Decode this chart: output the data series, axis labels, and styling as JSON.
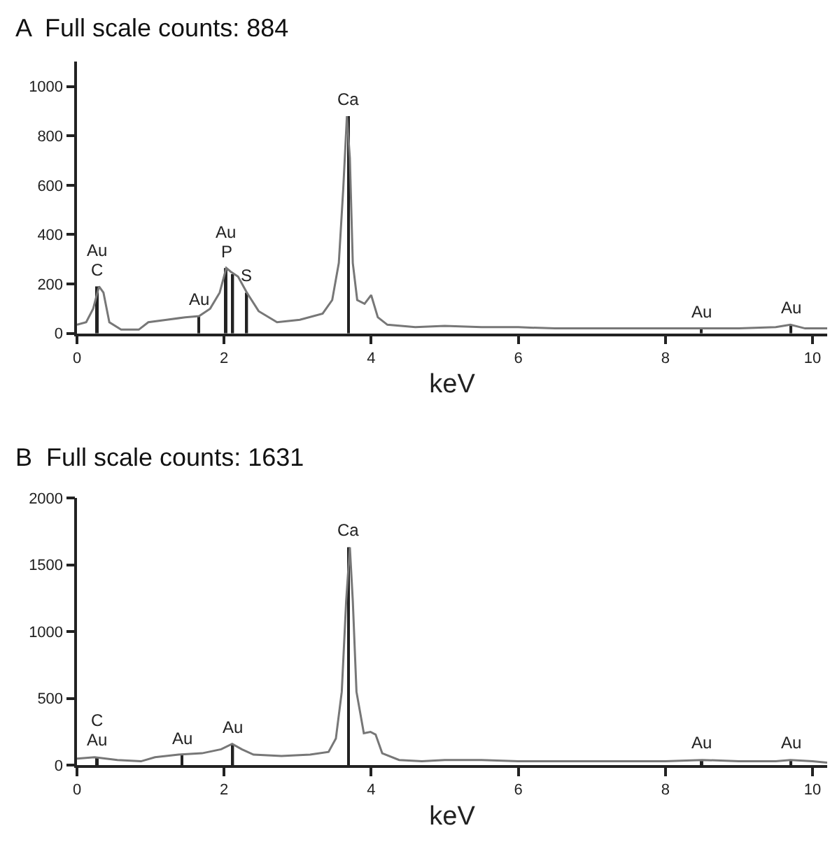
{
  "chart_data": [
    {
      "type": "line",
      "title": "A  Full scale counts: 884",
      "xlabel": "keV",
      "xlim": [
        0,
        10.2
      ],
      "xticks": [
        0,
        2,
        4,
        6,
        8,
        10
      ],
      "ylim": [
        0,
        1100
      ],
      "yticks": [
        0,
        200,
        400,
        600,
        800,
        1000
      ],
      "marker": "none",
      "line_style": "solid",
      "series": [
        {
          "color": "#777777",
          "x": [
            0,
            0.125,
            0.22,
            0.3,
            0.36,
            0.44,
            0.6,
            0.84,
            0.97,
            1.22,
            1.47,
            1.66,
            1.81,
            1.94,
            2.03,
            2.09,
            2.19,
            2.31,
            2.47,
            2.72,
            3.03,
            3.34,
            3.47,
            3.56,
            3.62,
            3.67,
            3.71,
            3.75,
            3.81,
            3.91,
            4.0,
            4.09,
            4.22,
            4.6,
            5,
            5.5,
            6,
            6.5,
            7,
            7.5,
            8,
            8.5,
            9,
            9.5,
            9.7,
            9.9,
            10.2
          ],
          "values": [
            35,
            45,
            100,
            190,
            165,
            45,
            15,
            15,
            45,
            55,
            65,
            70,
            100,
            165,
            265,
            250,
            230,
            165,
            90,
            45,
            55,
            80,
            135,
            285,
            585,
            880,
            710,
            285,
            135,
            120,
            155,
            65,
            35,
            25,
            30,
            25,
            25,
            20,
            20,
            20,
            20,
            20,
            20,
            25,
            35,
            20,
            20
          ]
        },
        {
          "type": "bar",
          "color": "#222222",
          "x": [
            0.28,
            1.66,
            2.03,
            2.12,
            2.31,
            3.69,
            8.49,
            9.71
          ],
          "values": [
            190,
            70,
            265,
            240,
            165,
            880,
            20,
            35
          ]
        }
      ],
      "annotations": [
        {
          "text": "C",
          "x": 0.28,
          "y": 190
        },
        {
          "text": "Au",
          "x": 0.28,
          "y": 190
        },
        {
          "text": "Au",
          "x": 1.66,
          "y": 70
        },
        {
          "text": "P",
          "x": 2.03,
          "y": 265
        },
        {
          "text": "Au",
          "x": 2.03,
          "y": 265
        },
        {
          "text": "S",
          "x": 2.31,
          "y": 165
        },
        {
          "text": "Ca",
          "x": 3.69,
          "y": 880
        },
        {
          "text": "Au",
          "x": 8.49,
          "y": 20
        },
        {
          "text": "Au",
          "x": 9.71,
          "y": 35
        }
      ]
    },
    {
      "type": "line",
      "title": "B  Full scale counts: 1631",
      "xlabel": "keV",
      "xlim": [
        0,
        10.2
      ],
      "xticks": [
        0,
        2,
        4,
        6,
        8,
        10
      ],
      "ylim": [
        0,
        2000
      ],
      "yticks": [
        0,
        500,
        1000,
        1500,
        2000
      ],
      "marker": "none",
      "line_style": "solid",
      "series": [
        {
          "color": "#777777",
          "x": [
            0,
            0.24,
            0.55,
            0.87,
            1.06,
            1.38,
            1.7,
            1.96,
            2.11,
            2.24,
            2.4,
            2.78,
            3.17,
            3.42,
            3.52,
            3.6,
            3.66,
            3.71,
            3.75,
            3.8,
            3.9,
            3.99,
            4.06,
            4.15,
            4.38,
            4.69,
            5,
            5.5,
            6,
            6.5,
            7,
            7.5,
            8,
            8.5,
            9,
            9.5,
            9.7,
            10,
            10.2
          ],
          "values": [
            50,
            60,
            40,
            30,
            60,
            80,
            90,
            120,
            160,
            120,
            80,
            70,
            80,
            100,
            200,
            550,
            1230,
            1631,
            1230,
            550,
            240,
            250,
            230,
            90,
            40,
            30,
            40,
            40,
            30,
            30,
            30,
            30,
            30,
            40,
            30,
            30,
            40,
            30,
            20
          ]
        },
        {
          "type": "bar",
          "color": "#222222",
          "x": [
            0.28,
            1.43,
            2.12,
            3.69,
            8.5,
            9.71
          ],
          "values": [
            60,
            80,
            160,
            1631,
            40,
            40
          ]
        }
      ],
      "annotations": [
        {
          "text": "Au",
          "x": 0.28,
          "y": 60
        },
        {
          "text": "C",
          "x": 0.28,
          "y": 60
        },
        {
          "text": "Au",
          "x": 1.43,
          "y": 80
        },
        {
          "text": "Au",
          "x": 2.12,
          "y": 160
        },
        {
          "text": "Ca",
          "x": 3.69,
          "y": 1631
        },
        {
          "text": "Au",
          "x": 8.5,
          "y": 40
        },
        {
          "text": "Au",
          "x": 9.71,
          "y": 40
        }
      ]
    }
  ]
}
